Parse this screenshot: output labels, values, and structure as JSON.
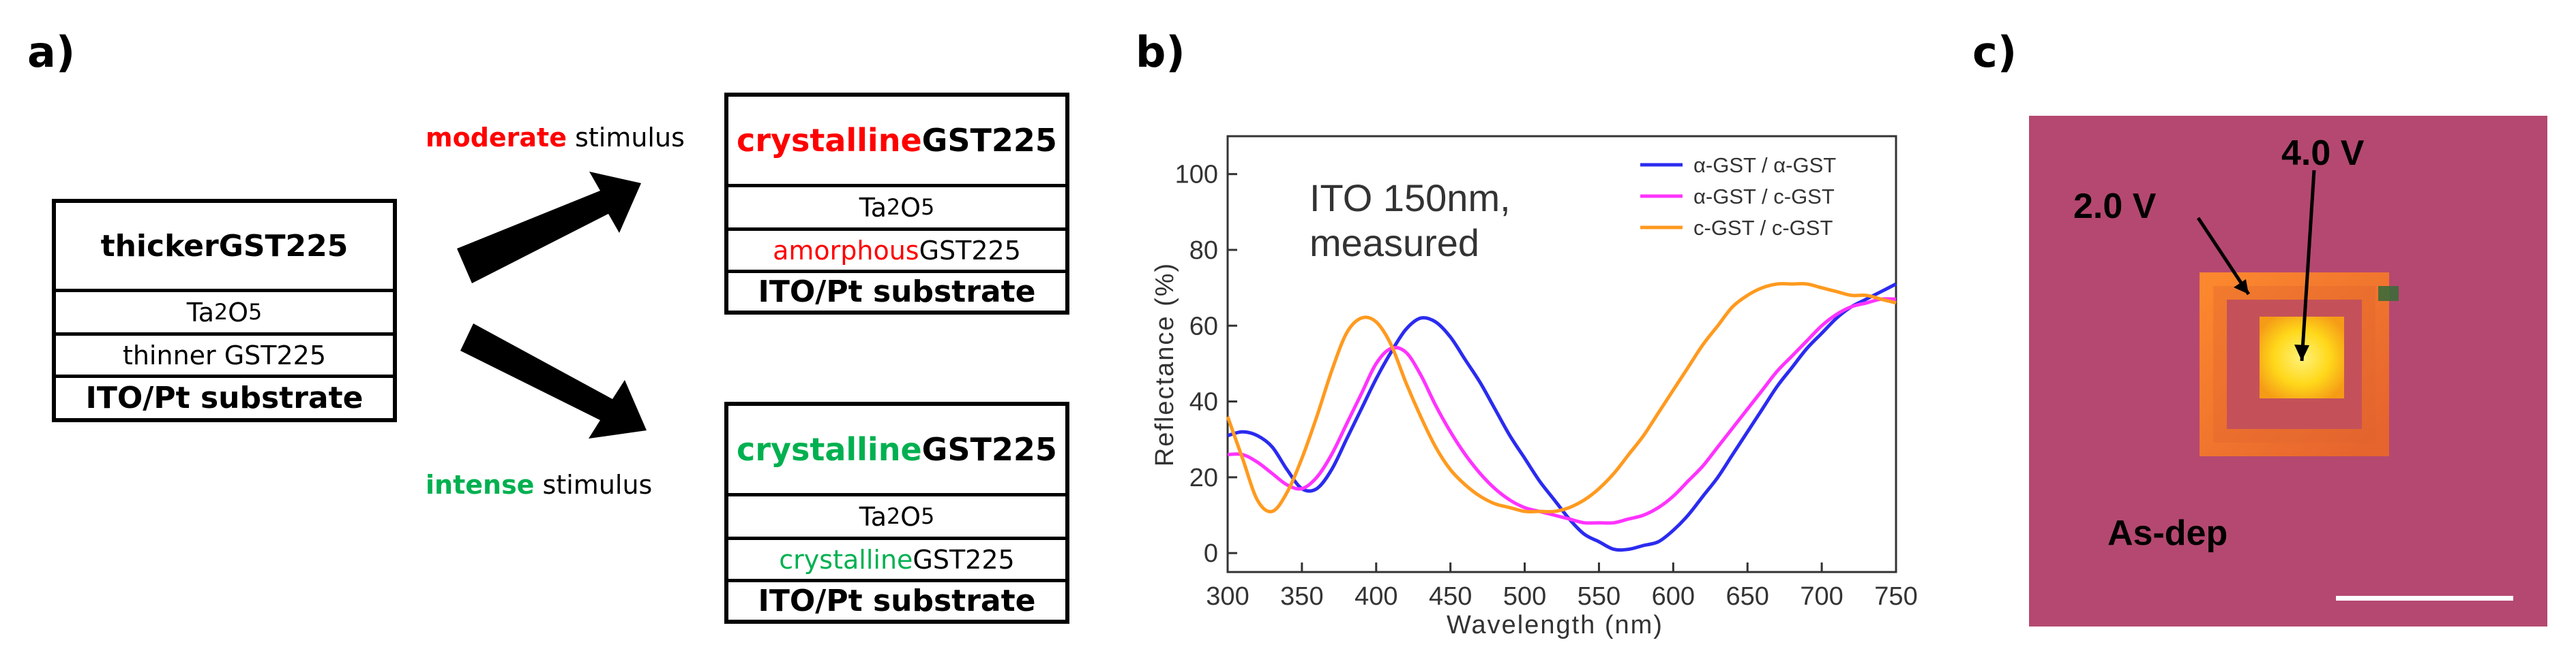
{
  "panels": {
    "a": "a)",
    "b": "b)",
    "c": "c)"
  },
  "diagram": {
    "initial_stack": {
      "top": {
        "keyword": "thicker",
        "rest": " GST225"
      },
      "oxide": {
        "base": "Ta",
        "sub1": "2",
        "mid": "O",
        "sub2": "5"
      },
      "bottom": "thinner GST225",
      "substrate": "ITO/Pt substrate"
    },
    "moderate": {
      "keyword": "moderate",
      "rest": " stimulus",
      "keyword_color": "#ff0000",
      "stack": {
        "top_kw": "crystalline",
        "top_rest": " GST225",
        "oxide": {
          "base": "Ta",
          "sub1": "2",
          "mid": "O",
          "sub2": "5"
        },
        "bottom_kw": "amorphous",
        "bottom_rest": " GST225",
        "substrate": "ITO/Pt substrate"
      }
    },
    "intense": {
      "keyword": "intense",
      "rest": " stimulus",
      "keyword_color": "#00b050",
      "stack": {
        "top_kw": "crystalline",
        "top_rest": " GST225",
        "oxide": {
          "base": "Ta",
          "sub1": "2",
          "mid": "O",
          "sub2": "5"
        },
        "bottom_kw": "crystalline",
        "bottom_rest": " GST225",
        "substrate": "ITO/Pt substrate"
      }
    }
  },
  "chart_data": {
    "type": "line",
    "title": "",
    "annotation": [
      "ITO 150nm,",
      "measured"
    ],
    "xlabel": "Wavelength (nm)",
    "ylabel": "Reflectance (%)",
    "xlim": [
      300,
      750
    ],
    "ylim": [
      -5,
      110
    ],
    "xticks": [
      300,
      350,
      400,
      450,
      500,
      550,
      600,
      650,
      700,
      750
    ],
    "yticks": [
      0,
      20,
      40,
      60,
      80,
      100
    ],
    "legend_position": "top-right",
    "series": [
      {
        "name": "α-GST / α-GST",
        "color": "#2b2bf0",
        "x": [
          300,
          310,
          320,
          330,
          340,
          350,
          360,
          370,
          380,
          390,
          400,
          410,
          420,
          430,
          440,
          450,
          460,
          470,
          480,
          490,
          500,
          510,
          520,
          530,
          540,
          550,
          560,
          570,
          580,
          590,
          600,
          610,
          620,
          630,
          640,
          650,
          660,
          670,
          680,
          690,
          700,
          710,
          720,
          730,
          740,
          750
        ],
        "y": [
          31,
          32,
          31,
          28,
          22,
          17,
          17,
          22,
          30,
          38,
          46,
          53,
          59,
          62,
          61,
          57,
          51,
          45,
          38,
          31,
          25,
          19,
          14,
          9,
          5,
          3,
          1,
          1,
          2,
          3,
          6,
          10,
          15,
          20,
          26,
          32,
          38,
          44,
          49,
          54,
          58,
          62,
          65,
          67,
          69,
          71
        ]
      },
      {
        "name": "α-GST / c-GST",
        "color": "#ff33ff",
        "x": [
          300,
          310,
          320,
          330,
          340,
          350,
          360,
          370,
          380,
          390,
          400,
          410,
          420,
          430,
          440,
          450,
          460,
          470,
          480,
          490,
          500,
          510,
          520,
          530,
          540,
          550,
          560,
          570,
          580,
          590,
          600,
          610,
          620,
          630,
          640,
          650,
          660,
          670,
          680,
          690,
          700,
          710,
          720,
          730,
          740,
          750
        ],
        "y": [
          26,
          26,
          24,
          21,
          18,
          17,
          20,
          26,
          34,
          42,
          50,
          54,
          53,
          47,
          39,
          32,
          26,
          21,
          17,
          14,
          12,
          11,
          10,
          9,
          8,
          8,
          8,
          9,
          10,
          12,
          15,
          19,
          23,
          28,
          33,
          38,
          43,
          48,
          52,
          56,
          60,
          63,
          65,
          66,
          67,
          67
        ]
      },
      {
        "name": "c-GST / c-GST",
        "color": "#ff9a1f",
        "x": [
          300,
          310,
          320,
          330,
          340,
          350,
          360,
          370,
          380,
          390,
          400,
          410,
          420,
          430,
          440,
          450,
          460,
          470,
          480,
          490,
          500,
          510,
          520,
          530,
          540,
          550,
          560,
          570,
          580,
          590,
          600,
          610,
          620,
          630,
          640,
          650,
          660,
          670,
          680,
          690,
          700,
          710,
          720,
          730,
          740,
          750
        ],
        "y": [
          36,
          25,
          14,
          11,
          16,
          25,
          36,
          48,
          58,
          62,
          61,
          55,
          45,
          36,
          28,
          22,
          18,
          15,
          13,
          12,
          11,
          11,
          11,
          12,
          14,
          17,
          21,
          26,
          31,
          37,
          43,
          49,
          55,
          60,
          65,
          68,
          70,
          71,
          71,
          71,
          70,
          69,
          68,
          68,
          67,
          66
        ]
      }
    ]
  },
  "micrograph": {
    "labels": {
      "v1": "2.0 V",
      "v2": "4.0 V",
      "state": "As-dep"
    },
    "colors": {
      "background": "#b54870",
      "pad_outer": "#f07a23",
      "pad_inner": "#ffe21a"
    }
  }
}
